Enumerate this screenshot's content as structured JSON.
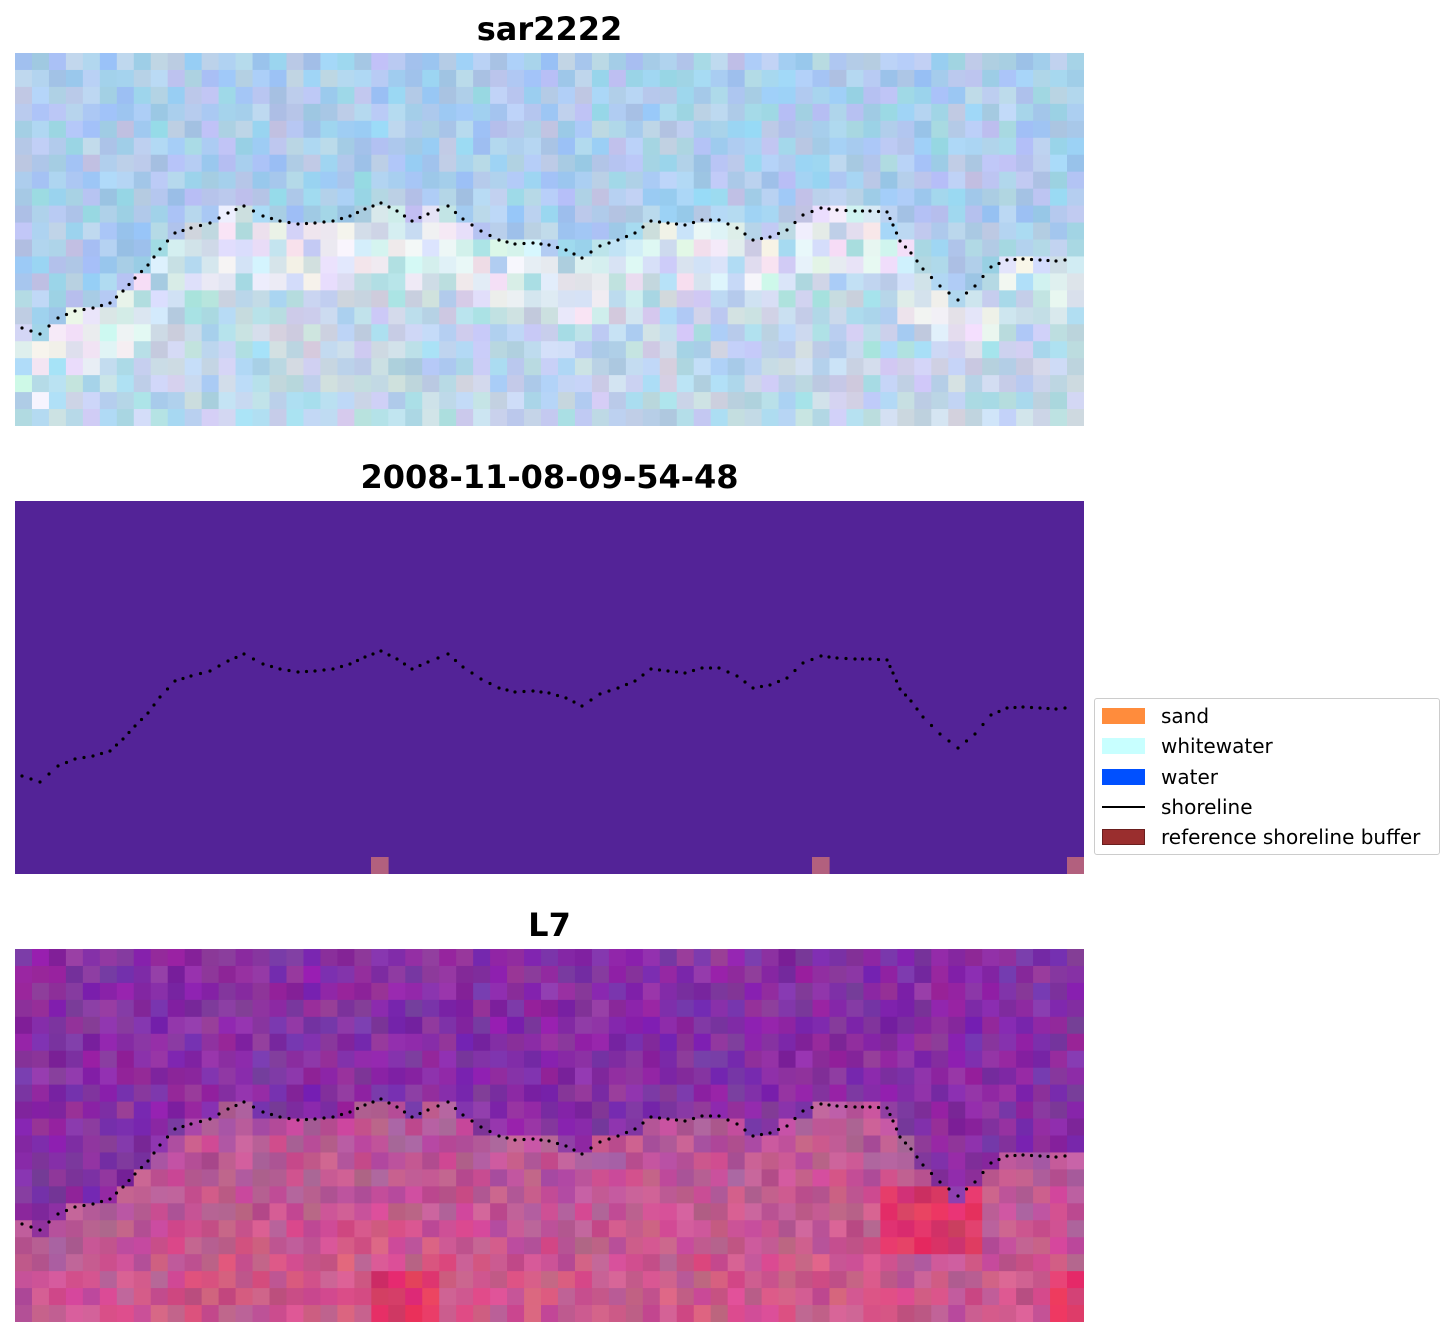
{
  "panels": [
    {
      "id": "rgb",
      "title": "sar2222"
    },
    {
      "id": "classified",
      "title": "2008-11-08-09-54-48"
    },
    {
      "id": "index",
      "title": "L7"
    }
  ],
  "legend": {
    "items": [
      {
        "label": "sand",
        "kind": "patch",
        "color": "#ff8c3c"
      },
      {
        "label": "whitewater",
        "kind": "patch",
        "color": "#c8ffff"
      },
      {
        "label": "water",
        "kind": "patch",
        "color": "#0050ff"
      },
      {
        "label": "shoreline",
        "kind": "line",
        "color": "#000000"
      },
      {
        "label": "reference shoreline buffer",
        "kind": "patch",
        "color": "#9a2e2e"
      }
    ]
  },
  "colors": {
    "classified_background": "#532397",
    "buffer_pixel": "#b2607e",
    "shoreline": "#000000"
  }
}
